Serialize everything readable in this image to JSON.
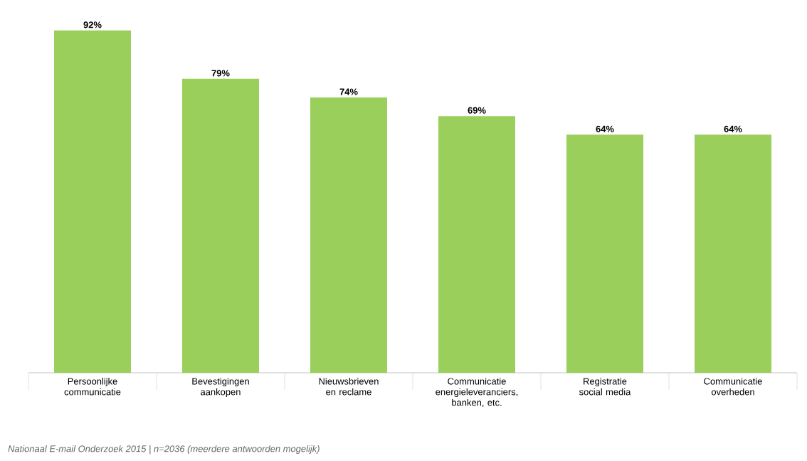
{
  "chart_data": {
    "type": "bar",
    "categories": [
      "Persoonlijke communicatie",
      "Bevestigingen aankopen",
      "Nieuwsbrieven en reclame",
      "Communicatie energieleveranciers, banken, etc.",
      "Registratie social media",
      "Communicatie overheden"
    ],
    "values": [
      92,
      79,
      74,
      69,
      64,
      64
    ],
    "value_labels": [
      "92%",
      "79%",
      "74%",
      "69%",
      "64%",
      "64%"
    ],
    "color": "#9bcf5c",
    "annotations": [
      "Nationaal E-mail Onderzoek 2015 | n=2036 (meerdere antwoorden mogelijk)"
    ]
  }
}
